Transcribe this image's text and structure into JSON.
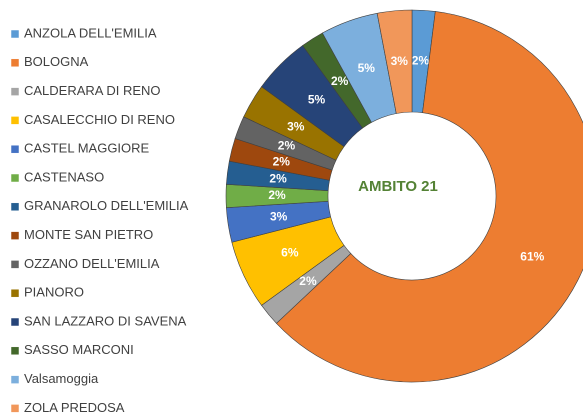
{
  "chart_data": {
    "type": "donut",
    "title": "AMBITO 21",
    "categories": [
      "ANZOLA DELL'EMILIA",
      "BOLOGNA",
      "CALDERARA DI RENO",
      "CASALECCHIO DI RENO",
      "CASTEL MAGGIORE",
      "CASTENASO",
      "GRANAROLO DELL'EMILIA",
      "MONTE SAN PIETRO",
      "OZZANO DELL'EMILIA",
      "PIANORO",
      "SAN LAZZARO DI SAVENA",
      "SASSO MARCONI",
      "Valsamoggia",
      "ZOLA PREDOSA"
    ],
    "values": [
      2,
      61,
      2,
      6,
      3,
      2,
      2,
      2,
      2,
      3,
      5,
      2,
      5,
      3
    ],
    "value_labels": [
      "2%",
      "61%",
      "2%",
      "6%",
      "3%",
      "2%",
      "2%",
      "2%",
      "2%",
      "3%",
      "5%",
      "2%",
      "5%",
      "3%"
    ],
    "colors": [
      "#5b9bd5",
      "#ed7d31",
      "#a5a5a5",
      "#ffc000",
      "#4472c4",
      "#70ad47",
      "#255e91",
      "#9e480e",
      "#636363",
      "#997300",
      "#264478",
      "#43682b",
      "#7cafdd",
      "#f1975a"
    ],
    "legend": "left"
  }
}
